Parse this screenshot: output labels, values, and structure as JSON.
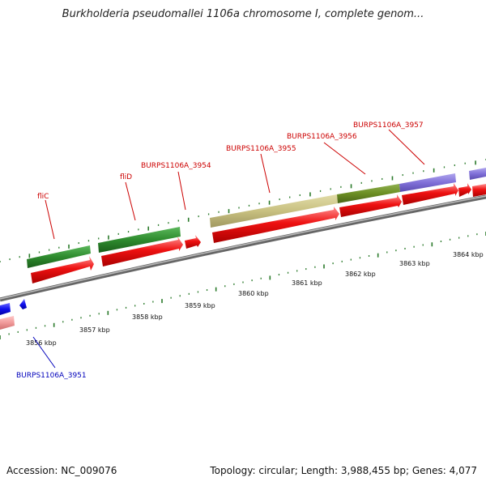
{
  "title": "Burkholderia pseudomallei 1106a chromosome I, complete genom...",
  "footer": {
    "accession": "Accession: NC_009076",
    "summary": "Topology: circular; Length: 3,988,455 bp; Genes: 4,077"
  },
  "colors": {
    "cds_forward": "#ee0000",
    "gene_green": "#2e8b2e",
    "gene_khaki": "#c8c080",
    "gene_olive": "#6b8e23",
    "gene_purple": "#8070d8",
    "gene_blue": "#1010ee",
    "gene_pink": "#f09a9a",
    "backbone": "#888888",
    "tick": "#2a7a2a",
    "label_red": "#cc0000",
    "label_blue": "#0000bb"
  },
  "scale_labels": [
    "3856 kbp",
    "3857 kbp",
    "3858 kbp",
    "3859 kbp",
    "3860 kbp",
    "3861 kbp",
    "3862 kbp",
    "3863 kbp",
    "3864 kbp"
  ],
  "gene_labels": [
    {
      "text": "fliC",
      "strand": "forward"
    },
    {
      "text": "fliD",
      "strand": "forward"
    },
    {
      "text": "BURPS1106A_3954",
      "strand": "forward"
    },
    {
      "text": "BURPS1106A_3955",
      "strand": "forward"
    },
    {
      "text": "BURPS1106A_3956",
      "strand": "forward"
    },
    {
      "text": "BURPS1106A_3957",
      "strand": "forward"
    },
    {
      "text": "BURPS1106A_3951",
      "strand": "reverse"
    }
  ]
}
